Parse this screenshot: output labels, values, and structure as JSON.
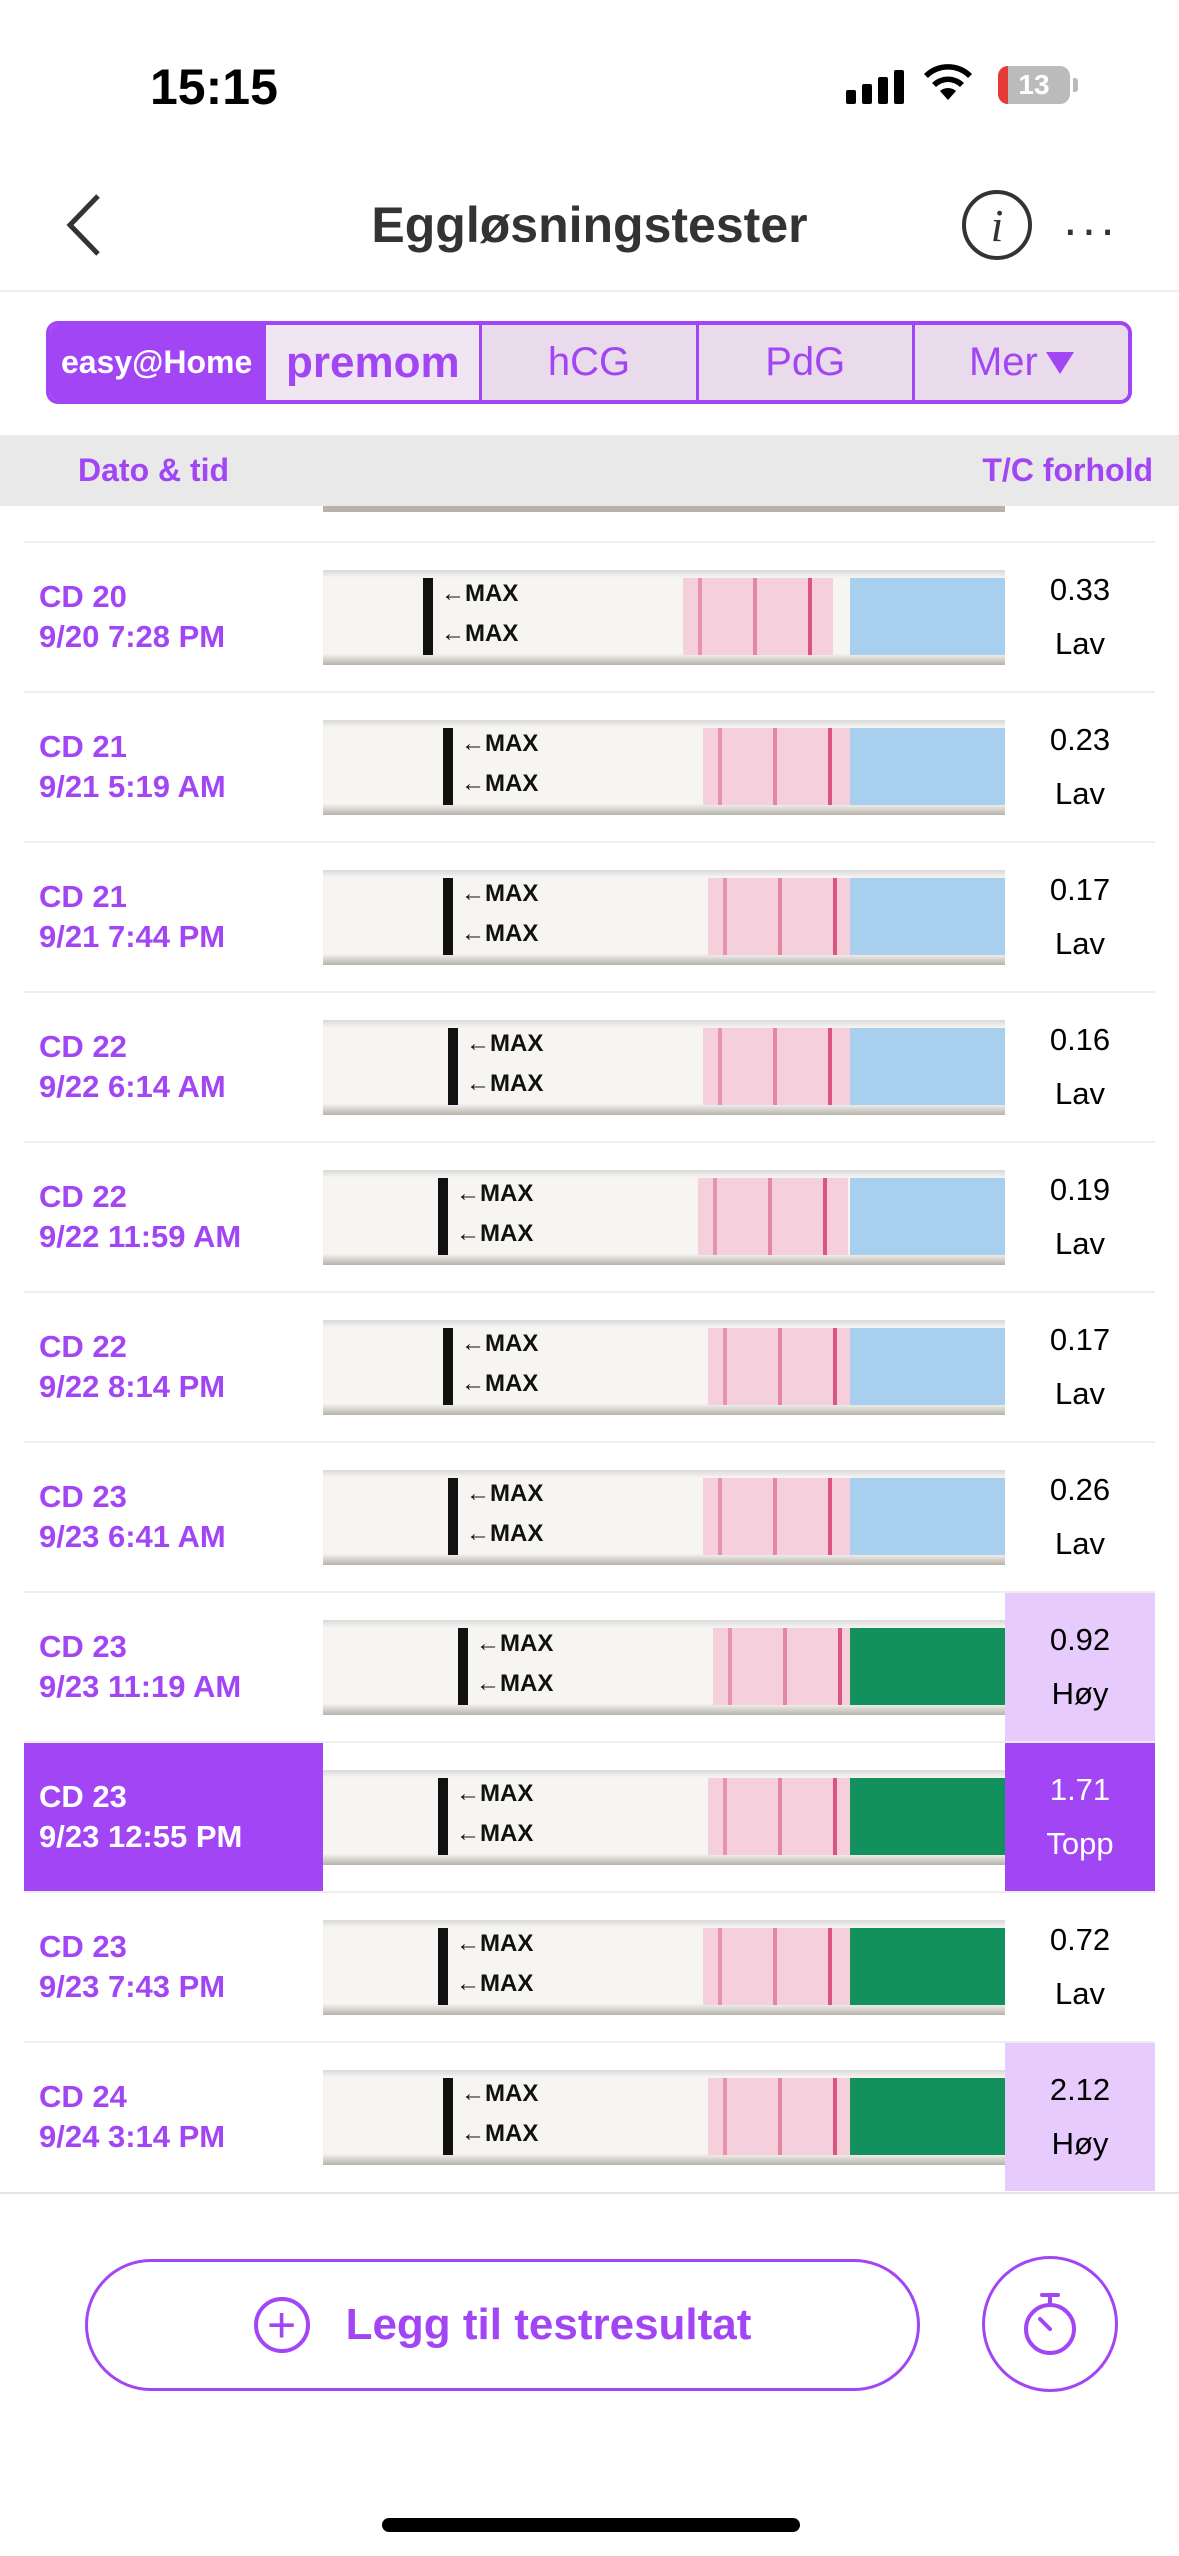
{
  "status_bar": {
    "time": "15:15",
    "battery": "13"
  },
  "nav": {
    "title": "Eggløsningstester",
    "info_label": "i",
    "more_label": "···"
  },
  "tabs": [
    {
      "label": "easy@Home",
      "brand": true
    },
    {
      "label": "premom",
      "brand": true
    },
    {
      "label": "hCG"
    },
    {
      "label": "PdG"
    },
    {
      "label": "Mer"
    }
  ],
  "columns": {
    "date": "Dato & tid",
    "ratio": "T/C forhold"
  },
  "strip_label": "←MAX",
  "colors": {
    "accent": "#a246f5",
    "high_bg": "#e7cbfd",
    "babyplan_blue": "#a9cfee",
    "lh_green": "#12915c"
  },
  "rows": [
    {
      "cd": "CD 20",
      "datetime": "9/20 7:28 PM",
      "ratio": "0.33",
      "level": "Lav",
      "strip": "blue"
    },
    {
      "cd": "CD 21",
      "datetime": "9/21 5:19 AM",
      "ratio": "0.23",
      "level": "Lav",
      "strip": "blue"
    },
    {
      "cd": "CD 21",
      "datetime": "9/21 7:44 PM",
      "ratio": "0.17",
      "level": "Lav",
      "strip": "blue"
    },
    {
      "cd": "CD 22",
      "datetime": "9/22 6:14 AM",
      "ratio": "0.16",
      "level": "Lav",
      "strip": "blue"
    },
    {
      "cd": "CD 22",
      "datetime": "9/22 11:59 AM",
      "ratio": "0.19",
      "level": "Lav",
      "strip": "blue"
    },
    {
      "cd": "CD 22",
      "datetime": "9/22 8:14 PM",
      "ratio": "0.17",
      "level": "Lav",
      "strip": "blue"
    },
    {
      "cd": "CD 23",
      "datetime": "9/23 6:41 AM",
      "ratio": "0.26",
      "level": "Lav",
      "strip": "blue"
    },
    {
      "cd": "CD 23",
      "datetime": "9/23 11:19 AM",
      "ratio": "0.92",
      "level": "Høy",
      "strip": "green",
      "highlight": "high"
    },
    {
      "cd": "CD 23",
      "datetime": "9/23 12:55 PM",
      "ratio": "1.71",
      "level": "Topp",
      "strip": "green",
      "highlight": "selected"
    },
    {
      "cd": "CD 23",
      "datetime": "9/23 7:43 PM",
      "ratio": "0.72",
      "level": "Lav",
      "strip": "green"
    },
    {
      "cd": "CD 24",
      "datetime": "9/24 3:14 PM",
      "ratio": "2.12",
      "level": "Høy",
      "strip": "green",
      "highlight": "high"
    }
  ],
  "footer": {
    "add_label": "Legg til testresultat"
  }
}
